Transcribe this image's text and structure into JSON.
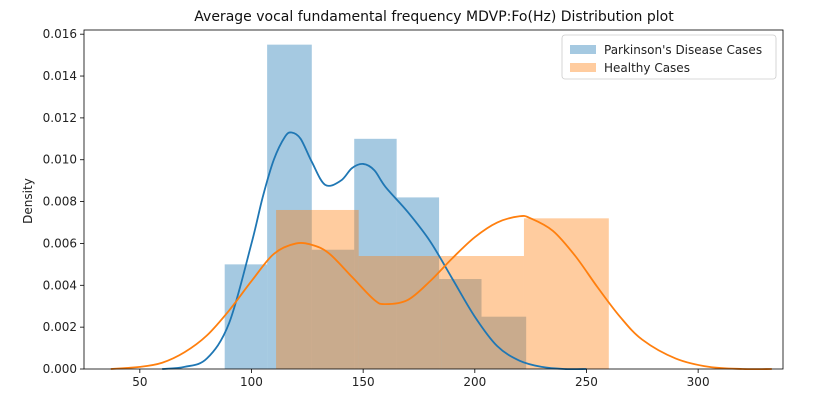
{
  "chart_data": {
    "type": "bar",
    "title": "Average vocal fundamental frequency MDVP:Fo(Hz) Distribution plot",
    "xlabel": "",
    "ylabel": "Density",
    "xlim": [
      25,
      338
    ],
    "ylim": [
      0,
      0.0162
    ],
    "x_ticks": [
      50,
      100,
      150,
      200,
      250,
      300
    ],
    "y_ticks": [
      0.0,
      0.002,
      0.004,
      0.006,
      0.008,
      0.01,
      0.012,
      0.014,
      0.016
    ],
    "grid": false,
    "legend_position": "top-right",
    "series": [
      {
        "name": "Parkinson's Disease Cases",
        "color": "#1f77b4",
        "hist_alpha": 0.4,
        "bins": [
          {
            "x0": 88,
            "x1": 107,
            "density": 0.005
          },
          {
            "x0": 107,
            "x1": 127,
            "density": 0.0155
          },
          {
            "x0": 127,
            "x1": 146,
            "density": 0.0057
          },
          {
            "x0": 146,
            "x1": 165,
            "density": 0.011
          },
          {
            "x0": 165,
            "x1": 184,
            "density": 0.0082
          },
          {
            "x0": 184,
            "x1": 203,
            "density": 0.0043
          },
          {
            "x0": 203,
            "x1": 223,
            "density": 0.0025
          }
        ],
        "kde": {
          "x": [
            60,
            70,
            80,
            90,
            100,
            105,
            110,
            115,
            118,
            122,
            127,
            133,
            140,
            145,
            150,
            155,
            160,
            170,
            180,
            190,
            200,
            210,
            220,
            230,
            240,
            250
          ],
          "y": [
            0.0,
            0.0001,
            0.0005,
            0.0022,
            0.006,
            0.0082,
            0.01,
            0.0111,
            0.0113,
            0.011,
            0.0099,
            0.0088,
            0.009,
            0.0096,
            0.0098,
            0.0095,
            0.0087,
            0.0075,
            0.0061,
            0.0043,
            0.0025,
            0.0011,
            0.0004,
            0.0001,
            0.0,
            0.0
          ]
        }
      },
      {
        "name": "Healthy Cases",
        "color": "#ff7f0e",
        "hist_alpha": 0.4,
        "bins": [
          {
            "x0": 111,
            "x1": 148,
            "density": 0.0076
          },
          {
            "x0": 148,
            "x1": 185,
            "density": 0.0054
          },
          {
            "x0": 185,
            "x1": 222,
            "density": 0.0054
          },
          {
            "x0": 222,
            "x1": 260,
            "density": 0.0072
          }
        ],
        "kde": {
          "x": [
            37,
            50,
            60,
            70,
            80,
            90,
            100,
            110,
            120,
            128,
            135,
            145,
            155,
            160,
            170,
            180,
            190,
            200,
            210,
            220,
            225,
            235,
            245,
            255,
            265,
            275,
            290,
            305,
            320,
            333
          ],
          "y": [
            0.0,
            0.0001,
            0.0003,
            0.0008,
            0.0016,
            0.0028,
            0.0042,
            0.0055,
            0.006,
            0.0059,
            0.0055,
            0.0044,
            0.0033,
            0.0031,
            0.0033,
            0.0042,
            0.0053,
            0.0063,
            0.007,
            0.0073,
            0.0072,
            0.0066,
            0.0054,
            0.0039,
            0.0025,
            0.0014,
            0.0005,
            0.0001,
            0.0,
            0.0
          ]
        }
      }
    ]
  }
}
